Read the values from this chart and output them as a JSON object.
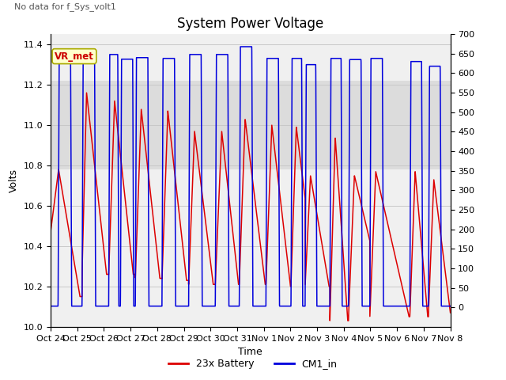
{
  "title": "System Power Voltage",
  "subtitle": "No data for f_Sys_volt1",
  "xlabel": "Time",
  "ylabel_left": "Volts",
  "ylim_left": [
    10.0,
    11.45
  ],
  "ylim_right": [
    -50,
    700
  ],
  "yticks_left": [
    10.0,
    10.2,
    10.4,
    10.6,
    10.8,
    11.0,
    11.2,
    11.4
  ],
  "yticks_right": [
    0,
    50,
    100,
    150,
    200,
    250,
    300,
    350,
    400,
    450,
    500,
    550,
    600,
    650,
    700
  ],
  "xtick_labels": [
    "Oct 24",
    "Oct 25",
    "Oct 26",
    "Oct 27",
    "Oct 28",
    "Oct 29",
    "Oct 30",
    "Oct 31",
    "Nov 1",
    "Nov 2",
    "Nov 3",
    "Nov 4",
    "Nov 5",
    "Nov 6",
    "Nov 7",
    "Nov 8"
  ],
  "grid_color": "#c8c8c8",
  "bg_band_color": "#dcdcdc",
  "plot_bg": "#f0f0f0",
  "legend_entries": [
    "23x Battery",
    "CM1_in"
  ],
  "legend_colors": [
    "#dd0000",
    "#0000dd"
  ],
  "vr_met_label": "VR_met",
  "vr_met_color": "#cc0000",
  "vr_met_bg": "#ffffcc",
  "vr_met_border": "#aaaa00",
  "title_fontsize": 12,
  "axis_fontsize": 9,
  "tick_fontsize": 8
}
